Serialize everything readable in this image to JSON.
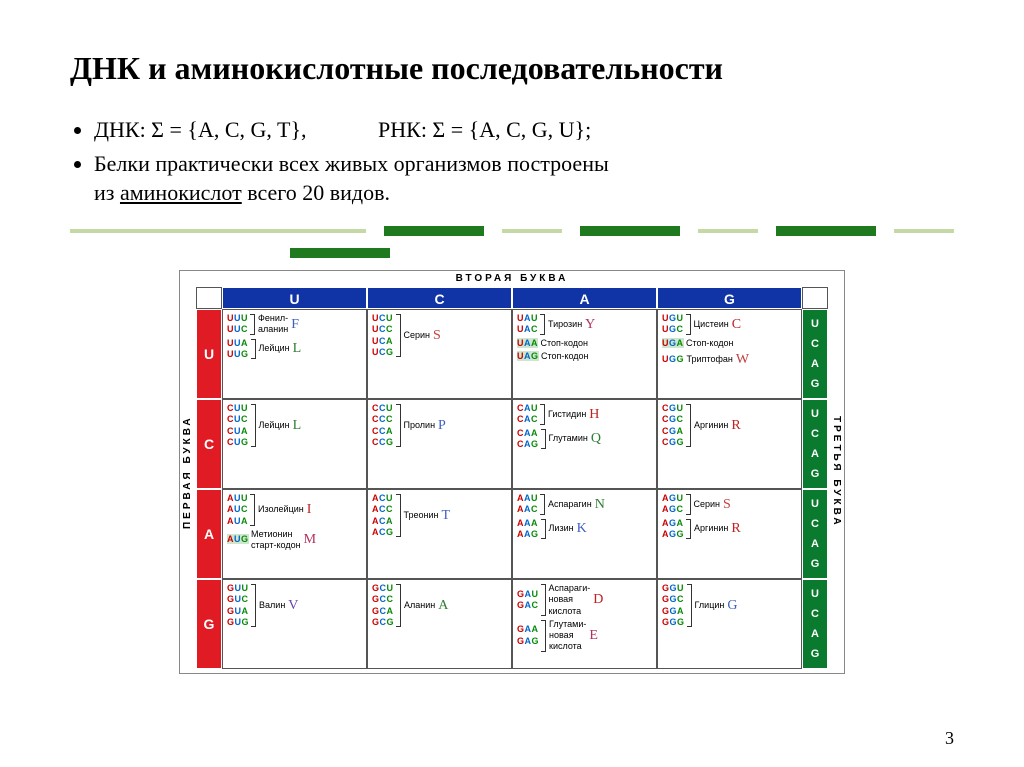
{
  "title": "ДНК и аминокислотные последовательности",
  "bullet1_dna": "ДНК: Σ = {A, C, G, T},",
  "bullet1_rna": "РНК: Σ = {A, C, G, U};",
  "bullet2_a": "Белки практически всех живых организмов построены",
  "bullet2_b": "из ",
  "bullet2_c": "аминокислот",
  "bullet2_d": " всего 20 видов.",
  "page_number": "3",
  "top_label": "ВТОРАЯ  БУКВА",
  "left_label": "ПЕРВАЯ  БУКВА",
  "right_label": "ТРЕТЬЯ  БУКВА",
  "cols": [
    "U",
    "C",
    "A",
    "G"
  ],
  "rows": [
    "U",
    "C",
    "A",
    "G"
  ],
  "third": [
    "U",
    "C",
    "A",
    "G"
  ],
  "colors": {
    "header_top": "#1033a6",
    "header_left": "#e01b24",
    "header_right": "#097a2e",
    "letter_colors": {
      "F": "#4060c0",
      "L": "#2e7d32",
      "S": "#c04040",
      "Y": "#b03060",
      "C": "#c02020",
      "W": "#c04040",
      "H": "#c02020",
      "Q": "#2e7d32",
      "P": "#4060c0",
      "R": "#c02020",
      "I": "#c02020",
      "M": "#b03060",
      "T": "#4060c0",
      "N": "#2e7d32",
      "K": "#4060c0",
      "V": "#6a3fb5",
      "A": "#2e7d32",
      "D": "#c02020",
      "E": "#b03060",
      "G": "#4060c0"
    }
  },
  "cells": [
    [
      {
        "groups": [
          {
            "codons": [
              "UUU",
              "UUC"
            ],
            "name": "Фенил-\nаланин",
            "letter": "F"
          },
          {
            "codons": [
              "UUA",
              "UUG"
            ],
            "name": "Лейцин",
            "letter": "L"
          }
        ]
      },
      {
        "groups": [
          {
            "codons": [
              "UCU",
              "UCC",
              "UCA",
              "UCG"
            ],
            "name": "Серин",
            "letter": "S"
          }
        ]
      },
      {
        "groups": [
          {
            "codons": [
              "UAU",
              "UAC"
            ],
            "name": "Тирозин",
            "letter": "Y"
          },
          {
            "codons": [
              "UAA"
            ],
            "name": "Стоп-кодон",
            "hl": [
              0
            ]
          },
          {
            "codons": [
              "UAG"
            ],
            "name": "Стоп-кодон",
            "hl": [
              0
            ]
          }
        ]
      },
      {
        "groups": [
          {
            "codons": [
              "UGU",
              "UGC"
            ],
            "name": "Цистеин",
            "letter": "C"
          },
          {
            "codons": [
              "UGA"
            ],
            "name": "Стоп-кодон",
            "hl": [
              0
            ]
          },
          {
            "codons": [
              "UGG"
            ],
            "name": "Триптофан",
            "letter": "W"
          }
        ]
      }
    ],
    [
      {
        "groups": [
          {
            "codons": [
              "CUU",
              "CUC",
              "CUA",
              "CUG"
            ],
            "name": "Лейцин",
            "letter": "L"
          }
        ]
      },
      {
        "groups": [
          {
            "codons": [
              "CCU",
              "CCC",
              "CCA",
              "CCG"
            ],
            "name": "Пролин",
            "letter": "P"
          }
        ]
      },
      {
        "groups": [
          {
            "codons": [
              "CAU",
              "CAC"
            ],
            "name": "Гистидин",
            "letter": "H"
          },
          {
            "codons": [
              "CAA",
              "CAG"
            ],
            "name": "Глутамин",
            "letter": "Q"
          }
        ]
      },
      {
        "groups": [
          {
            "codons": [
              "CGU",
              "CGC",
              "CGA",
              "CGG"
            ],
            "name": "Аргинин",
            "letter": "R"
          }
        ]
      }
    ],
    [
      {
        "groups": [
          {
            "codons": [
              "AUU",
              "AUC",
              "AUA"
            ],
            "name": "Изолейцин",
            "letter": "I"
          },
          {
            "codons": [
              "AUG"
            ],
            "name": "Метионин\nстарт-кодон",
            "letter": "M",
            "hl": [
              0
            ]
          }
        ]
      },
      {
        "groups": [
          {
            "codons": [
              "ACU",
              "ACC",
              "ACA",
              "ACG"
            ],
            "name": "Треонин",
            "letter": "T"
          }
        ]
      },
      {
        "groups": [
          {
            "codons": [
              "AAU",
              "AAC"
            ],
            "name": "Аспарагин",
            "letter": "N"
          },
          {
            "codons": [
              "AAA",
              "AAG"
            ],
            "name": "Лизин",
            "letter": "K"
          }
        ]
      },
      {
        "groups": [
          {
            "codons": [
              "AGU",
              "AGC"
            ],
            "name": "Серин",
            "letter": "S"
          },
          {
            "codons": [
              "AGA",
              "AGG"
            ],
            "name": "Аргинин",
            "letter": "R"
          }
        ]
      }
    ],
    [
      {
        "groups": [
          {
            "codons": [
              "GUU",
              "GUC",
              "GUA",
              "GUG"
            ],
            "name": "Валин",
            "letter": "V"
          }
        ]
      },
      {
        "groups": [
          {
            "codons": [
              "GCU",
              "GCC",
              "GCA",
              "GCG"
            ],
            "name": "Аланин",
            "letter": "A"
          }
        ]
      },
      {
        "groups": [
          {
            "codons": [
              "GAU",
              "GAC"
            ],
            "name": "Аспараги-\nновая\nкислота",
            "letter": "D"
          },
          {
            "codons": [
              "GAA",
              "GAG"
            ],
            "name": "Глутами-\nновая\nкислота",
            "letter": "E"
          }
        ]
      },
      {
        "groups": [
          {
            "codons": [
              "GGU",
              "GGC",
              "GGA",
              "GGG"
            ],
            "name": "Глицин",
            "letter": "G"
          }
        ]
      }
    ]
  ]
}
